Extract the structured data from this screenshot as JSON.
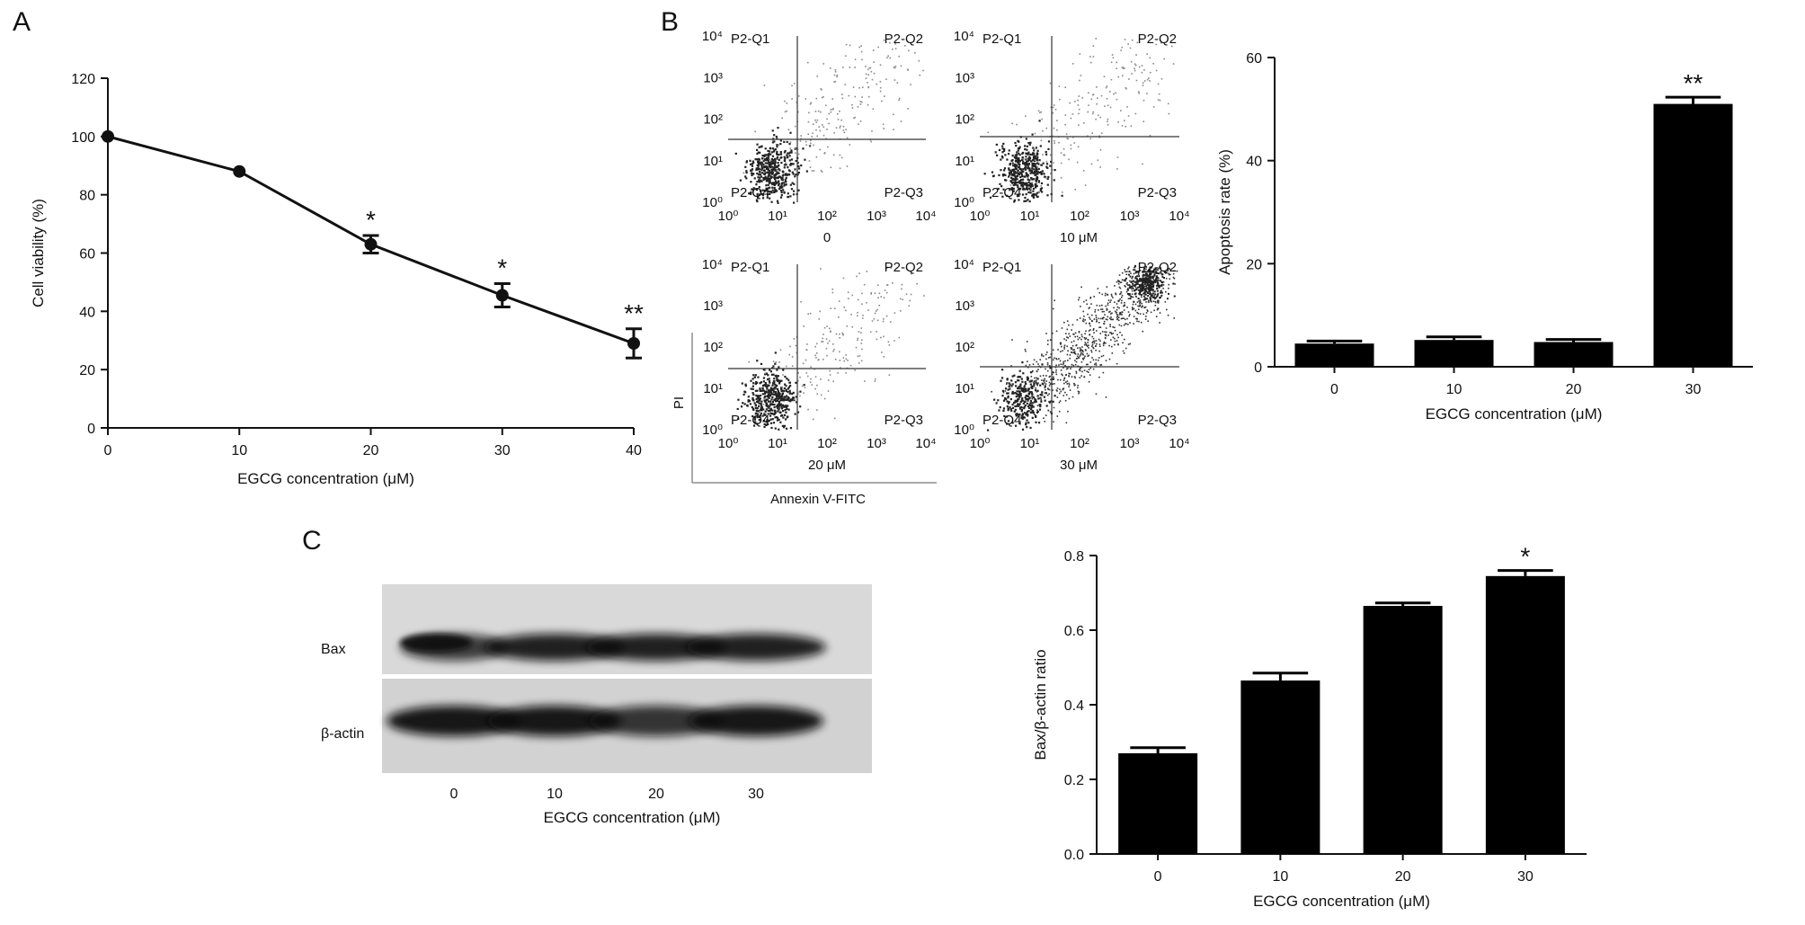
{
  "panel_labels": {
    "a": "A",
    "b": "B",
    "c": "C"
  },
  "chart_data": [
    {
      "id": "A",
      "type": "line",
      "title": "",
      "xlabel": "EGCG concentration (μM)",
      "ylabel": "Cell viability (%)",
      "x": [
        0,
        10,
        20,
        30,
        40
      ],
      "x_tick_labels": [
        "0",
        "10",
        "20",
        "30",
        "40"
      ],
      "y_tick_labels": [
        "0",
        "20",
        "40",
        "60",
        "80",
        "100",
        "120"
      ],
      "ylim": [
        0,
        120
      ],
      "xlim": [
        0,
        40
      ],
      "series": [
        {
          "values": [
            100,
            88,
            63,
            45.5,
            29
          ],
          "errors": [
            0,
            0,
            3,
            4,
            5
          ]
        }
      ],
      "annotations": [
        "",
        "",
        "*",
        "*",
        "**"
      ],
      "grid": false
    },
    {
      "id": "B-flow",
      "type": "scatter",
      "ylabel": "PI",
      "xlabel": "Annexin V-FITC",
      "axis_tick_labels": [
        "10⁰",
        "10¹",
        "10²",
        "10³",
        "10⁴"
      ],
      "plots": [
        {
          "label": "0",
          "quadrants": [
            "P2-Q1",
            "P2-Q2",
            "P2-Q4",
            "P2-Q3"
          ]
        },
        {
          "label": "10 μM",
          "quadrants": [
            "P2-Q1",
            "P2-Q2",
            "P2-Q4",
            "P2-Q3"
          ]
        },
        {
          "label": "20 μM",
          "quadrants": [
            "P2-Q1",
            "P2-Q2",
            "P2-Q4",
            "P2-Q3"
          ]
        },
        {
          "label": "30 μM",
          "quadrants": [
            "P2-Q1",
            "P2-Q2",
            "P2-Q4",
            "P2-Q3"
          ]
        }
      ]
    },
    {
      "id": "B-bar",
      "type": "bar",
      "title": "",
      "xlabel": "EGCG concentration (μM)",
      "ylabel": "Apoptosis rate (%)",
      "categories": [
        "0",
        "10",
        "20",
        "30"
      ],
      "series": [
        {
          "values": [
            4.5,
            5.2,
            4.8,
            51
          ],
          "errors": [
            0.5,
            0.6,
            0.5,
            1.3
          ]
        }
      ],
      "y_tick_labels": [
        "0",
        "20",
        "40",
        "60"
      ],
      "ylim": [
        0,
        60
      ],
      "annotations": [
        "",
        "",
        "",
        "**"
      ]
    },
    {
      "id": "C-blot",
      "type": "other",
      "row_labels": [
        "Bax",
        "β-actin"
      ],
      "lane_labels": [
        "0",
        "10",
        "20",
        "30"
      ],
      "xlabel": "EGCG concentration (μM)"
    },
    {
      "id": "C-bar",
      "type": "bar",
      "title": "",
      "xlabel": "EGCG concentration (μM)",
      "ylabel": "Bax/β-actin ratio",
      "categories": [
        "0",
        "10",
        "20",
        "30"
      ],
      "series": [
        {
          "values": [
            0.27,
            0.465,
            0.665,
            0.745
          ],
          "errors": [
            0.015,
            0.02,
            0.008,
            0.015
          ]
        }
      ],
      "y_tick_labels": [
        "0.0",
        "0.2",
        "0.4",
        "0.6",
        "0.8"
      ],
      "ylim": [
        0,
        0.8
      ],
      "annotations": [
        "",
        "",
        "",
        "*"
      ]
    }
  ]
}
